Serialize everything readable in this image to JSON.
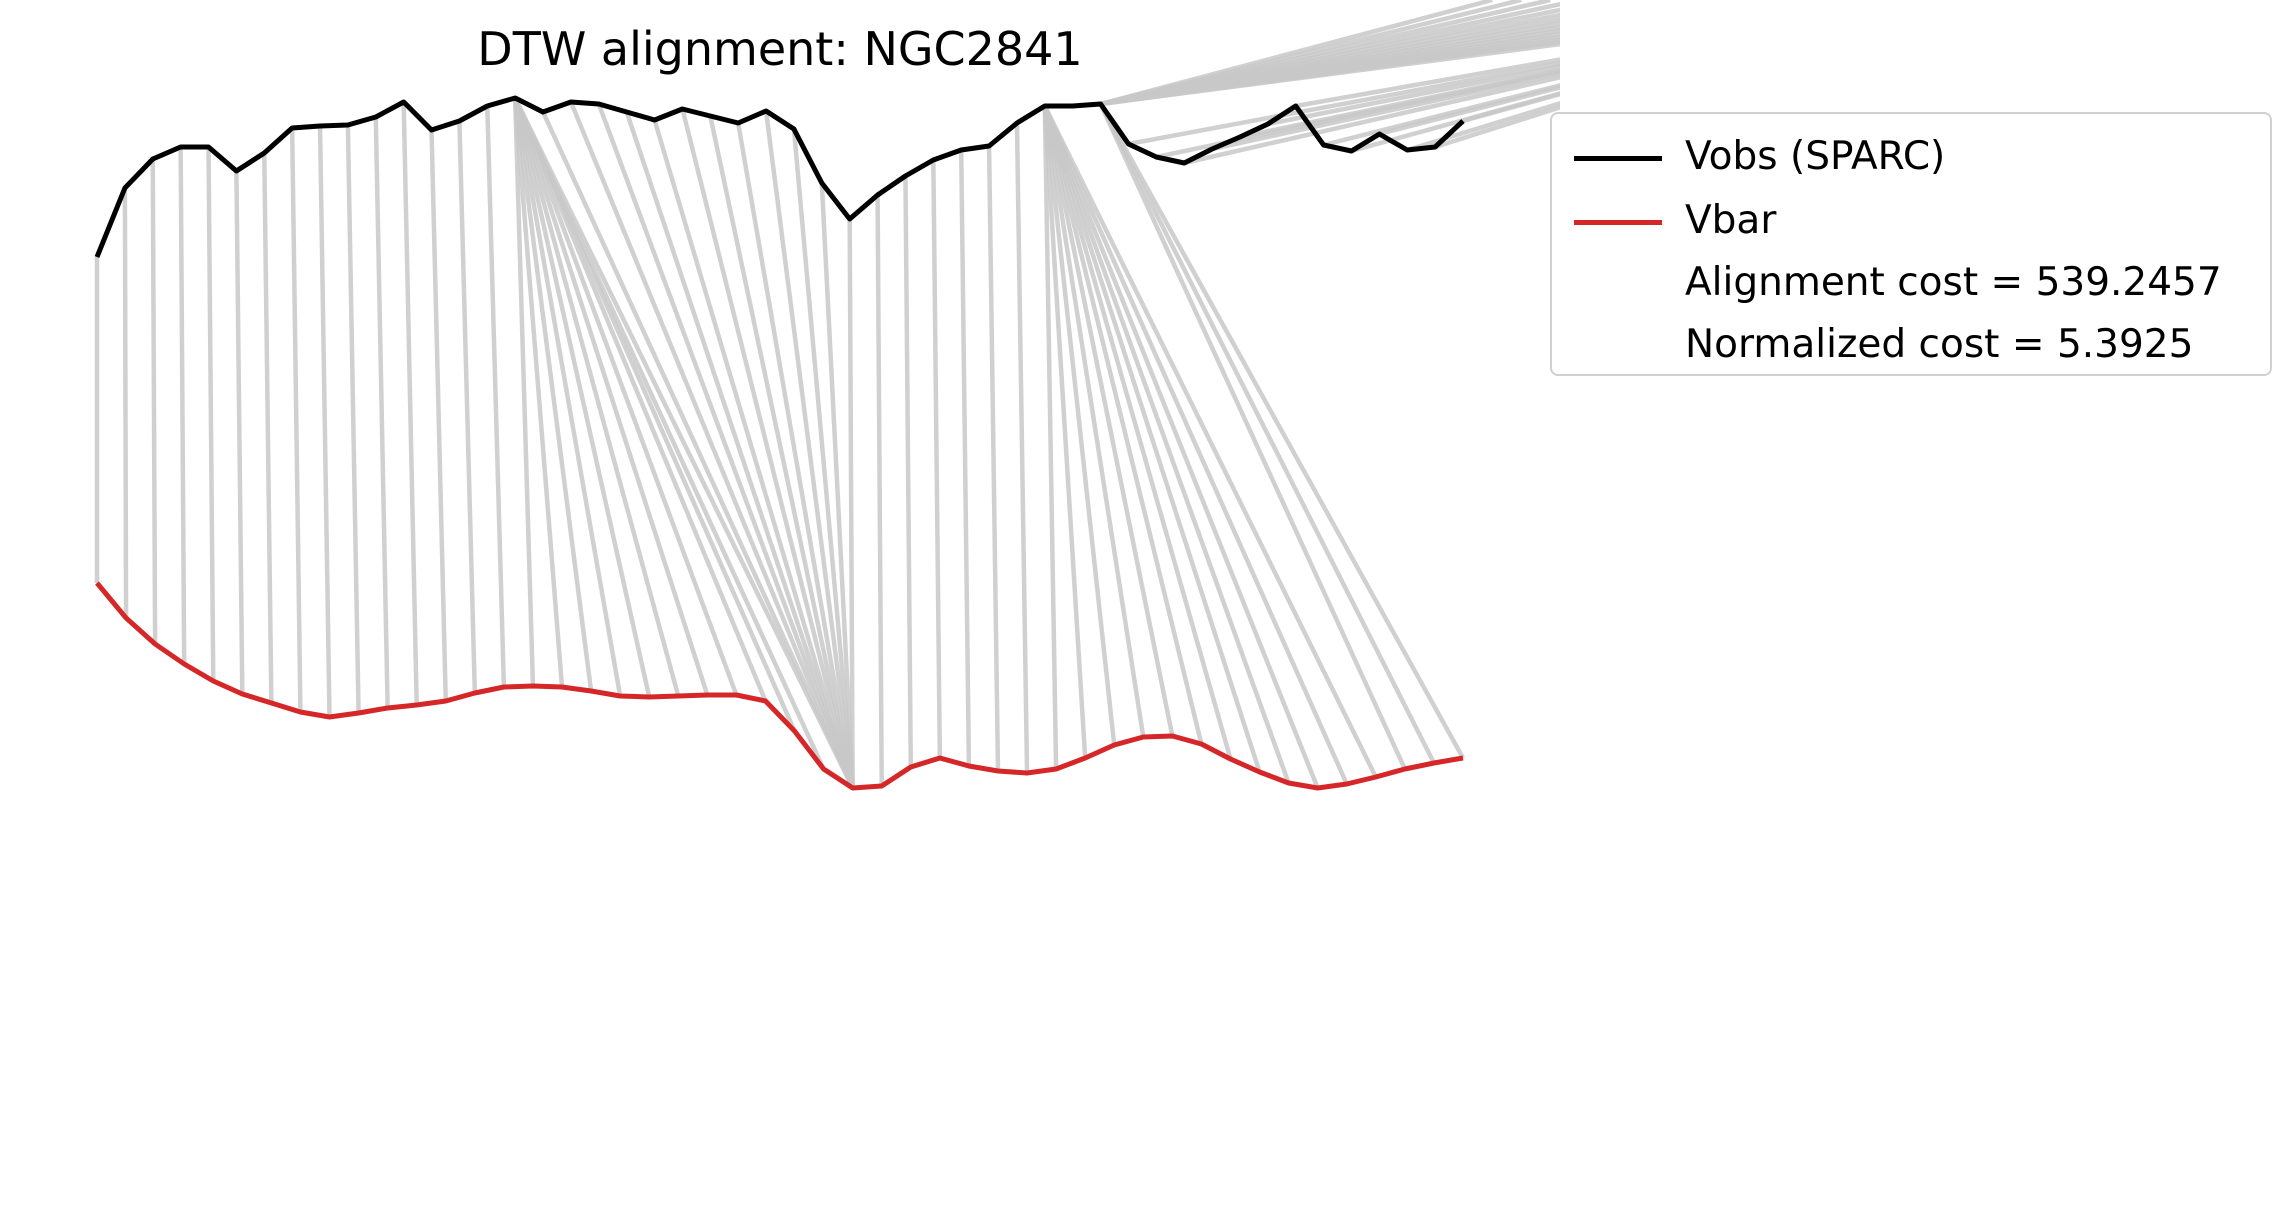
{
  "chart_data": {
    "type": "line",
    "title": "DTW alignment: NGC2841",
    "xlabel": "",
    "ylabel": "",
    "axes_visible": false,
    "grid": false,
    "legend_position": "upper-right-outside",
    "series": [
      {
        "name": "Vobs (SPARC)",
        "color": "#000000",
        "values": [
          257,
          188,
          159,
          147,
          147,
          171,
          153,
          128,
          126,
          125,
          117,
          102,
          130,
          121,
          106,
          98,
          112,
          102,
          104,
          112,
          120,
          109,
          116,
          123,
          111,
          129,
          183,
          219,
          195,
          176,
          160,
          150,
          146,
          123,
          106,
          106,
          104,
          144,
          157,
          163,
          149,
          137,
          124,
          106,
          145,
          151,
          134,
          150,
          147,
          121
        ]
      },
      {
        "name": "Vbar",
        "color": "#d62728",
        "values": [
          583,
          618,
          644,
          664,
          681,
          694,
          703,
          712,
          717,
          713,
          708,
          705,
          701,
          693,
          687,
          686,
          687,
          691,
          696,
          697,
          696,
          695,
          695,
          701,
          731,
          769,
          788,
          786,
          767,
          758,
          766,
          771,
          773,
          769,
          758,
          745,
          737,
          736,
          744,
          759,
          772,
          783,
          788,
          784,
          777,
          769,
          763,
          758
        ]
      }
    ],
    "alignment_pairs": [
      [
        0,
        0
      ],
      [
        1,
        1
      ],
      [
        2,
        2
      ],
      [
        3,
        3
      ],
      [
        4,
        4
      ],
      [
        5,
        5
      ],
      [
        6,
        6
      ],
      [
        7,
        7
      ],
      [
        8,
        8
      ],
      [
        9,
        9
      ],
      [
        10,
        10
      ],
      [
        11,
        11
      ],
      [
        12,
        12
      ],
      [
        13,
        13
      ],
      [
        14,
        14
      ],
      [
        15,
        15
      ],
      [
        15,
        16
      ],
      [
        15,
        17
      ],
      [
        15,
        18
      ],
      [
        15,
        19
      ],
      [
        15,
        20
      ],
      [
        15,
        21
      ],
      [
        15,
        22
      ],
      [
        15,
        23
      ],
      [
        15,
        24
      ],
      [
        15,
        25
      ],
      [
        15,
        26
      ],
      [
        16,
        26
      ],
      [
        17,
        26
      ],
      [
        18,
        26
      ],
      [
        19,
        26
      ],
      [
        20,
        26
      ],
      [
        21,
        26
      ],
      [
        22,
        26
      ],
      [
        23,
        26
      ],
      [
        24,
        26
      ],
      [
        25,
        26
      ],
      [
        26,
        26
      ],
      [
        27,
        26
      ],
      [
        28,
        27
      ],
      [
        29,
        28
      ],
      [
        30,
        29
      ],
      [
        31,
        30
      ],
      [
        32,
        31
      ],
      [
        33,
        32
      ],
      [
        34,
        33
      ],
      [
        34,
        34
      ],
      [
        34,
        35
      ],
      [
        34,
        36
      ],
      [
        34,
        37
      ],
      [
        34,
        38
      ],
      [
        34,
        39
      ],
      [
        34,
        40
      ],
      [
        34,
        41
      ],
      [
        34,
        42
      ],
      [
        34,
        43
      ],
      [
        34,
        44
      ],
      [
        36,
        45
      ],
      [
        36,
        46
      ],
      [
        36,
        47
      ],
      [
        36,
        48
      ],
      [
        36,
        49
      ],
      [
        36,
        50
      ],
      [
        36,
        51
      ],
      [
        36,
        52
      ],
      [
        36,
        53
      ],
      [
        36,
        54
      ],
      [
        36,
        55
      ],
      [
        36,
        56
      ],
      [
        36,
        57
      ],
      [
        36,
        58
      ],
      [
        36,
        59
      ],
      [
        36,
        60
      ],
      [
        36,
        61
      ],
      [
        36,
        62
      ],
      [
        37,
        62
      ],
      [
        38,
        62
      ],
      [
        39,
        62
      ],
      [
        40,
        62
      ],
      [
        41,
        62
      ],
      [
        42,
        62
      ],
      [
        43,
        62
      ],
      [
        44,
        62
      ],
      [
        45,
        62
      ],
      [
        46,
        62
      ],
      [
        47,
        62
      ],
      [
        48,
        62
      ],
      [
        49,
        62
      ]
    ],
    "legend": {
      "entries": [
        "Vobs (SPARC)",
        "Vbar"
      ],
      "notes": [
        "Alignment cost = 539.2457",
        "Normalized cost = 5.3925"
      ]
    },
    "connector_color": "#c8c8c8"
  }
}
